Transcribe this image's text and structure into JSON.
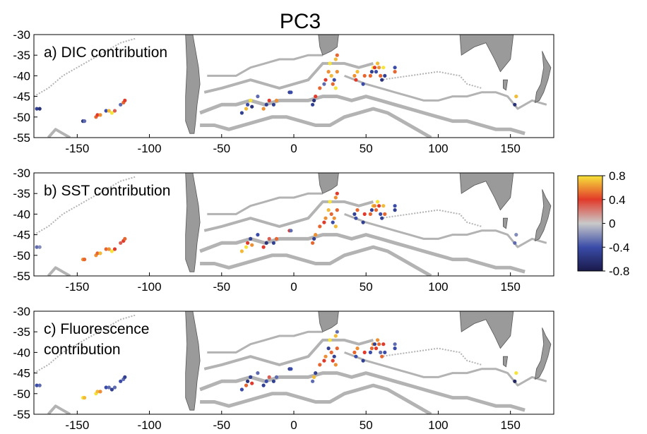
{
  "title": "PC3",
  "chart_data": {
    "type": "scatter",
    "xlim": [
      -180,
      180
    ],
    "ylim": [
      -55,
      -30
    ],
    "xticks": [
      -150,
      -100,
      -50,
      0,
      50,
      100,
      150
    ],
    "yticks": [
      -30,
      -35,
      -40,
      -45,
      -50,
      -55
    ],
    "colorbar": {
      "range": [
        -0.8,
        0.8
      ],
      "ticks": [
        "0.8",
        "0.4",
        "0",
        "-0.4",
        "-0.8"
      ],
      "colors": [
        "#f7e43a",
        "#e23a2a",
        "#c9c9c9",
        "#3a4ca8",
        "#1a1a4a"
      ]
    },
    "panels": [
      {
        "label": "a) DIC contribution",
        "points": [
          [
            -178,
            -48,
            -0.5
          ],
          [
            -176,
            -48,
            -0.6
          ],
          [
            -146,
            -51,
            -0.6
          ],
          [
            -145,
            -51,
            -0.3
          ],
          [
            -137,
            -50,
            0.5
          ],
          [
            -136,
            -49.5,
            0.4
          ],
          [
            -134,
            -49.5,
            0.6
          ],
          [
            -130,
            -48.5,
            -0.4
          ],
          [
            -128,
            -48.5,
            0.7
          ],
          [
            -126,
            -49,
            0.8
          ],
          [
            -124,
            -48.5,
            0.3
          ],
          [
            -120,
            -47,
            -0.3
          ],
          [
            -118,
            -46.5,
            0.5
          ],
          [
            -117,
            -46,
            0.4
          ],
          [
            -36,
            -49,
            -0.5
          ],
          [
            -33,
            -48,
            0.7
          ],
          [
            -32,
            -47,
            -0.4
          ],
          [
            -30,
            -46,
            0.8
          ],
          [
            -29,
            -47.5,
            -0.6
          ],
          [
            -25,
            -45,
            -0.3
          ],
          [
            -21,
            -48,
            0.6
          ],
          [
            -19,
            -47,
            -0.5
          ],
          [
            -17,
            -46,
            0.4
          ],
          [
            -14,
            -47,
            -0.5
          ],
          [
            -12,
            -46,
            0.6
          ],
          [
            -3,
            -44,
            -0.5
          ],
          [
            -2,
            -44,
            -0.4
          ],
          [
            13,
            -47,
            -0.5
          ],
          [
            14,
            -46,
            -0.6
          ],
          [
            15,
            -45,
            0.4
          ],
          [
            18,
            -43,
            0.5
          ],
          [
            21,
            -42,
            -0.3
          ],
          [
            22,
            -41,
            0.4
          ],
          [
            24,
            -39,
            0.6
          ],
          [
            25,
            -37,
            0.8
          ],
          [
            26,
            -40,
            0.7
          ],
          [
            27,
            -42,
            0.5
          ],
          [
            28,
            -41,
            -0.4
          ],
          [
            29,
            -43,
            0.8
          ],
          [
            30,
            -39,
            0.6
          ],
          [
            29,
            -36,
            0.7
          ],
          [
            30,
            -35,
            0.5
          ],
          [
            42,
            -40,
            0.6
          ],
          [
            43,
            -41,
            0.4
          ],
          [
            44,
            -39,
            0.7
          ],
          [
            48,
            -42,
            -0.4
          ],
          [
            49,
            -40,
            0.5
          ],
          [
            53,
            -40,
            0.5
          ],
          [
            54,
            -39,
            -0.5
          ],
          [
            55,
            -38,
            0.8
          ],
          [
            56,
            -38,
            0.4
          ],
          [
            57,
            -39,
            -0.4
          ],
          [
            58,
            -37,
            0.7
          ],
          [
            59,
            -38,
            0.6
          ],
          [
            60,
            -40,
            0.5
          ],
          [
            61,
            -41,
            -0.6
          ],
          [
            62,
            -38,
            0.8
          ],
          [
            63,
            -40,
            -0.5
          ],
          [
            70,
            -39,
            0.5
          ],
          [
            70,
            -38,
            -0.4
          ],
          [
            154,
            -45,
            0.7
          ],
          [
            153,
            -47,
            -0.6
          ]
        ]
      },
      {
        "label": "b) SST contribution",
        "points": [
          [
            -178,
            -48,
            -0.3
          ],
          [
            -176,
            -48,
            -0.2
          ],
          [
            -146,
            -51,
            0.6
          ],
          [
            -145,
            -51,
            0.5
          ],
          [
            -137,
            -50,
            0.6
          ],
          [
            -136,
            -49.5,
            0.5
          ],
          [
            -134,
            -49.5,
            0.7
          ],
          [
            -130,
            -48.5,
            0.5
          ],
          [
            -128,
            -48.5,
            0.6
          ],
          [
            -126,
            -49,
            0.8
          ],
          [
            -124,
            -48.5,
            0.4
          ],
          [
            -120,
            -47,
            0.3
          ],
          [
            -118,
            -46.5,
            0.4
          ],
          [
            -117,
            -46,
            0.5
          ],
          [
            -36,
            -49,
            0.7
          ],
          [
            -33,
            -48,
            0.8
          ],
          [
            -32,
            -47,
            0.4
          ],
          [
            -30,
            -46,
            -0.5
          ],
          [
            -29,
            -47.5,
            0.6
          ],
          [
            -25,
            -45,
            -0.4
          ],
          [
            -21,
            -48,
            0.4
          ],
          [
            -19,
            -47,
            -0.6
          ],
          [
            -17,
            -46,
            0.3
          ],
          [
            -14,
            -47,
            -0.5
          ],
          [
            -12,
            -46,
            0.5
          ],
          [
            -3,
            -44,
            0.4
          ],
          [
            -2,
            -44,
            -0.3
          ],
          [
            13,
            -47,
            0.5
          ],
          [
            14,
            -46,
            -0.5
          ],
          [
            15,
            -45,
            0.6
          ],
          [
            18,
            -43,
            0.5
          ],
          [
            21,
            -42,
            0.4
          ],
          [
            22,
            -41,
            0.6
          ],
          [
            24,
            -39,
            0.7
          ],
          [
            25,
            -37,
            0.8
          ],
          [
            26,
            -40,
            0.5
          ],
          [
            27,
            -42,
            -0.4
          ],
          [
            28,
            -41,
            0.6
          ],
          [
            29,
            -43,
            0.7
          ],
          [
            30,
            -39,
            0.5
          ],
          [
            29,
            -36,
            0.6
          ],
          [
            30,
            -35,
            0.4
          ],
          [
            42,
            -40,
            -0.5
          ],
          [
            43,
            -41,
            -0.4
          ],
          [
            44,
            -39,
            0.5
          ],
          [
            48,
            -42,
            -0.5
          ],
          [
            49,
            -40,
            0.4
          ],
          [
            53,
            -40,
            0.5
          ],
          [
            54,
            -39,
            -0.5
          ],
          [
            55,
            -38,
            0.7
          ],
          [
            56,
            -38,
            0.6
          ],
          [
            57,
            -39,
            0.5
          ],
          [
            58,
            -37,
            0.8
          ],
          [
            59,
            -38,
            0.4
          ],
          [
            60,
            -40,
            -0.4
          ],
          [
            61,
            -41,
            -0.5
          ],
          [
            62,
            -38,
            0.7
          ],
          [
            63,
            -40,
            0.5
          ],
          [
            70,
            -39,
            -0.5
          ],
          [
            70,
            -38,
            -0.4
          ],
          [
            154,
            -45,
            -0.2
          ],
          [
            153,
            -47,
            -0.3
          ]
        ]
      },
      {
        "label": "c) Fluorescence contribution",
        "points": [
          [
            -178,
            -48,
            -0.4
          ],
          [
            -176,
            -48,
            -0.3
          ],
          [
            -146,
            -51,
            0.8
          ],
          [
            -145,
            -51,
            0.7
          ],
          [
            -137,
            -50,
            0.8
          ],
          [
            -136,
            -49.5,
            0.7
          ],
          [
            -134,
            -49.5,
            0.6
          ],
          [
            -130,
            -48.5,
            -0.4
          ],
          [
            -128,
            -48.5,
            -0.3
          ],
          [
            -126,
            -49,
            -0.5
          ],
          [
            -124,
            -48.5,
            -0.3
          ],
          [
            -120,
            -47,
            -0.4
          ],
          [
            -118,
            -46.5,
            -0.3
          ],
          [
            -117,
            -46,
            -0.5
          ],
          [
            -36,
            -49,
            -0.4
          ],
          [
            -33,
            -48,
            0.5
          ],
          [
            -32,
            -47,
            -0.6
          ],
          [
            -30,
            -46,
            -0.5
          ],
          [
            -29,
            -47.5,
            0.4
          ],
          [
            -25,
            -45,
            -0.3
          ],
          [
            -21,
            -48,
            -0.5
          ],
          [
            -19,
            -47,
            -0.4
          ],
          [
            -17,
            -46,
            0.3
          ],
          [
            -14,
            -47,
            -0.5
          ],
          [
            -12,
            -46,
            -0.3
          ],
          [
            -3,
            -44,
            -0.5
          ],
          [
            -2,
            -44,
            -0.4
          ],
          [
            13,
            -47,
            -0.3
          ],
          [
            14,
            -46,
            0.7
          ],
          [
            15,
            -45,
            -0.5
          ],
          [
            18,
            -43,
            0.5
          ],
          [
            21,
            -42,
            0.4
          ],
          [
            22,
            -41,
            0.6
          ],
          [
            24,
            -39,
            -0.5
          ],
          [
            25,
            -37,
            0.8
          ],
          [
            26,
            -40,
            0.5
          ],
          [
            27,
            -42,
            0.4
          ],
          [
            28,
            -41,
            -0.5
          ],
          [
            29,
            -43,
            0.6
          ],
          [
            30,
            -39,
            0.5
          ],
          [
            29,
            -36,
            0.7
          ],
          [
            30,
            -35,
            -0.3
          ],
          [
            42,
            -40,
            0.5
          ],
          [
            43,
            -41,
            -0.4
          ],
          [
            44,
            -39,
            0.6
          ],
          [
            48,
            -42,
            -0.5
          ],
          [
            49,
            -40,
            0.4
          ],
          [
            53,
            -40,
            -0.4
          ],
          [
            54,
            -39,
            0.5
          ],
          [
            55,
            -38,
            0.6
          ],
          [
            56,
            -38,
            -0.5
          ],
          [
            57,
            -39,
            0.4
          ],
          [
            58,
            -37,
            0.6
          ],
          [
            59,
            -38,
            0.5
          ],
          [
            60,
            -40,
            -0.3
          ],
          [
            61,
            -41,
            0.5
          ],
          [
            62,
            -38,
            0.4
          ],
          [
            63,
            -40,
            -0.4
          ],
          [
            70,
            -39,
            -0.4
          ],
          [
            70,
            -38,
            -0.3
          ],
          [
            154,
            -45,
            0.8
          ],
          [
            153,
            -47,
            -0.7
          ]
        ]
      }
    ]
  }
}
